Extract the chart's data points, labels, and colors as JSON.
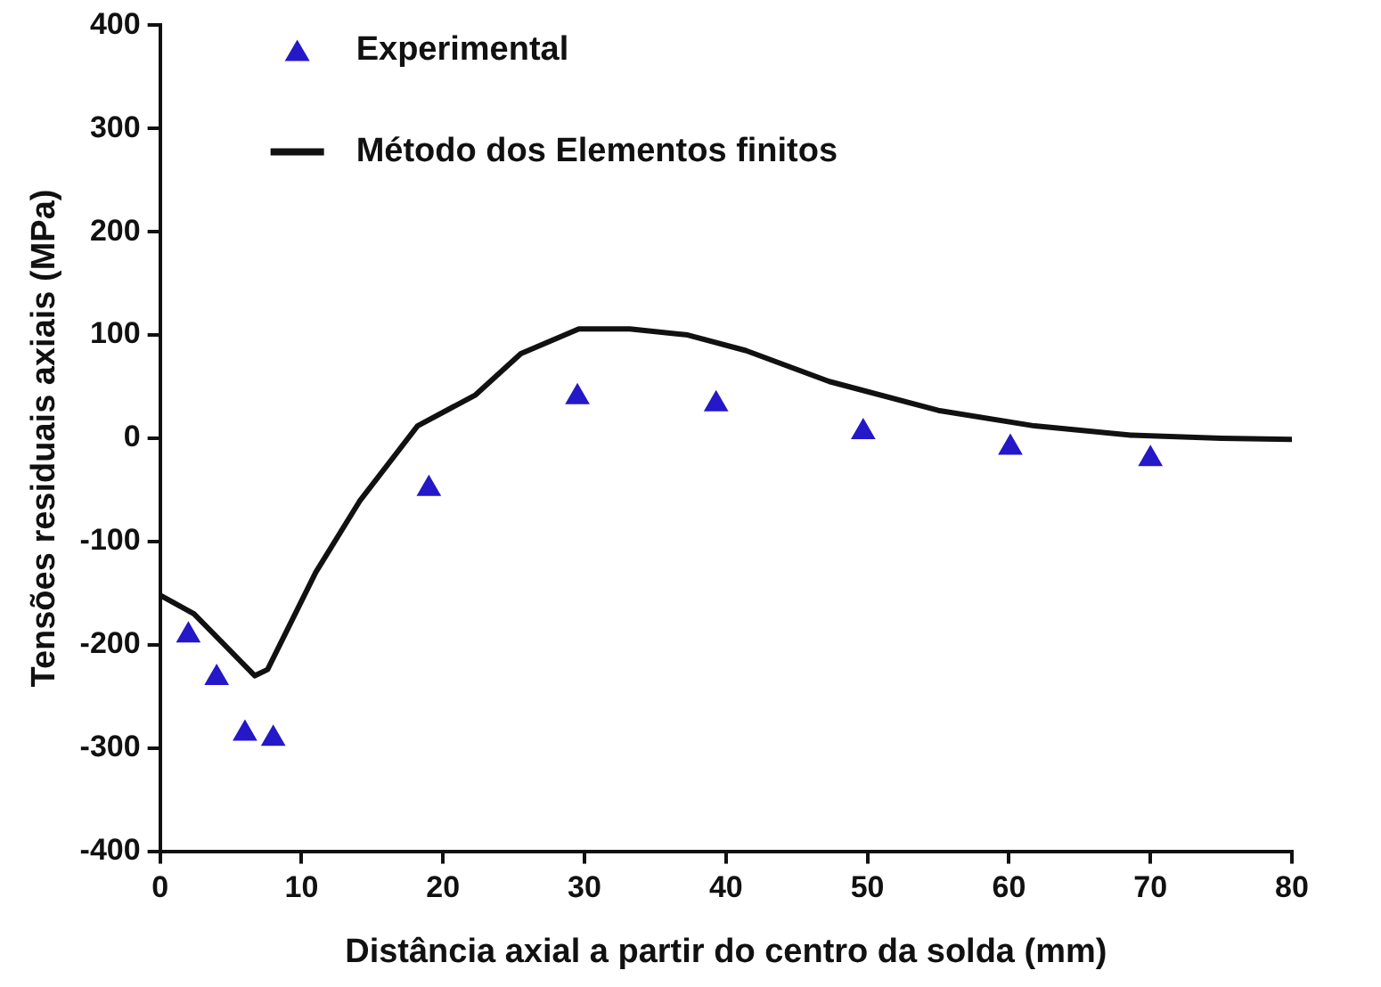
{
  "chart_data": {
    "type": "scatter",
    "xlabel": "Distância axial a partir do centro da solda (mm)",
    "ylabel": "Tensões residuais axiais (MPa)",
    "xlim": [
      0,
      80
    ],
    "xticks": [
      0,
      10,
      20,
      30,
      40,
      50,
      60,
      70,
      80
    ],
    "ylim": [
      -400,
      400
    ],
    "yticks": [
      -400,
      -300,
      -200,
      -100,
      0,
      100,
      200,
      300,
      400
    ],
    "grid": false,
    "legend": "top left",
    "series": [
      {
        "name": "Experimental",
        "marker": "triangle",
        "color": "#2418c8",
        "x": [
          2,
          4,
          6,
          8,
          19,
          29.5,
          39.3,
          49.7,
          60.1,
          70
        ],
        "values": [
          -191,
          -232,
          -286,
          -291,
          -49,
          40,
          33,
          6,
          -9,
          -20
        ]
      },
      {
        "name": "Método dos Elementos finitos",
        "type": "line",
        "marker": "none",
        "line_style": "solid",
        "color": "#111111",
        "x": [
          0,
          2.4,
          6.7,
          7.6,
          11,
          14.1,
          18.2,
          22.3,
          25.5,
          29.6,
          33.2,
          37.3,
          41.4,
          47.3,
          55,
          61.8,
          68.6,
          75,
          80
        ],
        "values": [
          -152,
          -170,
          -230,
          -224,
          -130,
          -61,
          12,
          42,
          82,
          106,
          106,
          100,
          85,
          55,
          27,
          12,
          3,
          0,
          -1
        ]
      }
    ]
  }
}
